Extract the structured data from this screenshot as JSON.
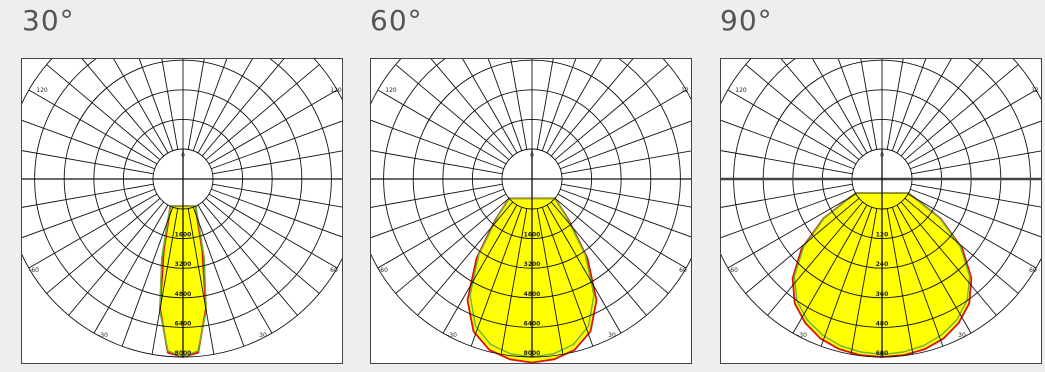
{
  "panels": [
    {
      "title": "30°",
      "chart_data": {
        "type": "polar",
        "angle_labels": [
          "0",
          "30",
          "60",
          "120",
          "-30",
          "-60",
          "120"
        ],
        "radial_labels": [
          "1600",
          "3200",
          "4800",
          "6400",
          "8000"
        ],
        "radial_max": 8000,
        "grid_line_gray": false,
        "series": [
          {
            "color": "#6fb43a",
            "values": [
              8000,
              7700,
              5600,
              2800,
              800,
              0
            ]
          },
          {
            "color": "#dd1111",
            "fill": "#ffff00",
            "values": [
              8000,
              7800,
              5500,
              2400,
              600,
              0
            ]
          }
        ],
        "series_angles": [
          0,
          5,
          10,
          15,
          20,
          25
        ]
      }
    },
    {
      "title": "60°",
      "chart_data": {
        "type": "polar",
        "angle_labels": [
          "0",
          "30",
          "60",
          "120",
          "-30",
          "-60",
          "12"
        ],
        "radial_labels": [
          "1600",
          "3200",
          "4800",
          "6400",
          "8000"
        ],
        "radial_max": 8000,
        "grid_line_gray": false,
        "series": [
          {
            "color": "#6fb43a",
            "values": [
              8000,
              7900,
              7600,
              6900,
              5500,
              3400,
              1200,
              0
            ]
          },
          {
            "color": "#dd1111",
            "fill": "#ffff00",
            "values": [
              8300,
              8200,
              7900,
              7200,
              5800,
              3600,
              1300,
              0
            ]
          }
        ],
        "series_angles": [
          0,
          7,
          14,
          21,
          28,
          35,
          42,
          50
        ]
      }
    },
    {
      "title": "90°",
      "chart_data": {
        "type": "polar",
        "angle_labels": [
          "0",
          "30",
          "60",
          "120",
          "-30",
          "-60",
          "12"
        ],
        "radial_labels": [
          "120",
          "240",
          "360",
          "480",
          "600"
        ],
        "radial_max": 600,
        "grid_line_gray": true,
        "series": [
          {
            "color": "#6fb43a",
            "values": [
              590,
              585,
              575,
              555,
              525,
              480,
              410,
              300,
              160,
              0
            ]
          },
          {
            "color": "#dd1111",
            "fill": "#ffff00",
            "values": [
              600,
              598,
              590,
              572,
              540,
              495,
              420,
              310,
              165,
              0
            ]
          }
        ],
        "series_angles": [
          0,
          7,
          14,
          21,
          28,
          35,
          42,
          49,
          56,
          62
        ]
      }
    }
  ]
}
